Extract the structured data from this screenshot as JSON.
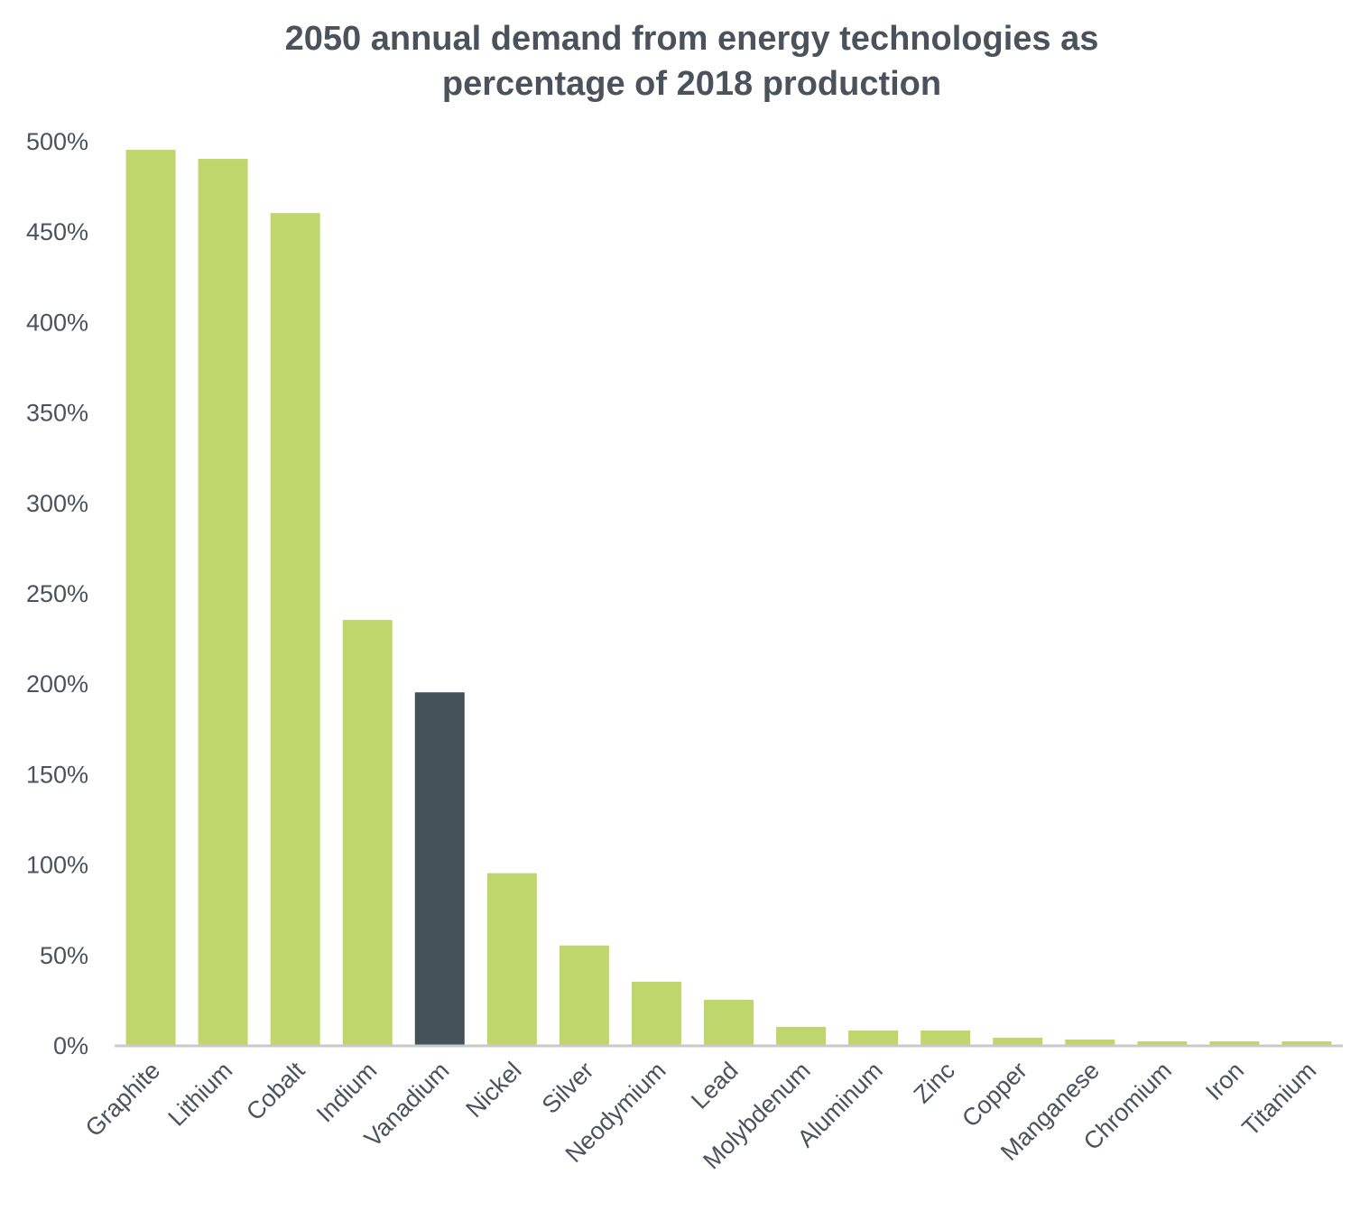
{
  "chart_data": {
    "type": "bar",
    "title": [
      "2050 annual demand from energy technologies as",
      "percentage of 2018 production"
    ],
    "xlabel": "",
    "ylabel": "",
    "ylim": [
      0,
      500
    ],
    "yticks": [
      0,
      50,
      100,
      150,
      200,
      250,
      300,
      350,
      400,
      450,
      500
    ],
    "ytick_labels": [
      "0%",
      "50%",
      "100%",
      "150%",
      "200%",
      "250%",
      "300%",
      "350%",
      "400%",
      "450%",
      "500%"
    ],
    "categories": [
      "Graphite",
      "Lithium",
      "Cobalt",
      "Indium",
      "Vanadium",
      "Nickel",
      "Silver",
      "Neodymium",
      "Lead",
      "Molybdenum",
      "Aluminum",
      "Zinc",
      "Copper",
      "Manganese",
      "Chromium",
      "Iron",
      "Titanium"
    ],
    "values": [
      495,
      490,
      460,
      235,
      195,
      95,
      55,
      35,
      25,
      10,
      8,
      8,
      4,
      3,
      2,
      2,
      2
    ],
    "highlight_category": "Vanadium",
    "grid": false,
    "legend": "none",
    "colors": {
      "bar": "#bed66b",
      "highlight": "#455159",
      "axis": "#c9c9c9",
      "text": "#4a535b"
    }
  }
}
